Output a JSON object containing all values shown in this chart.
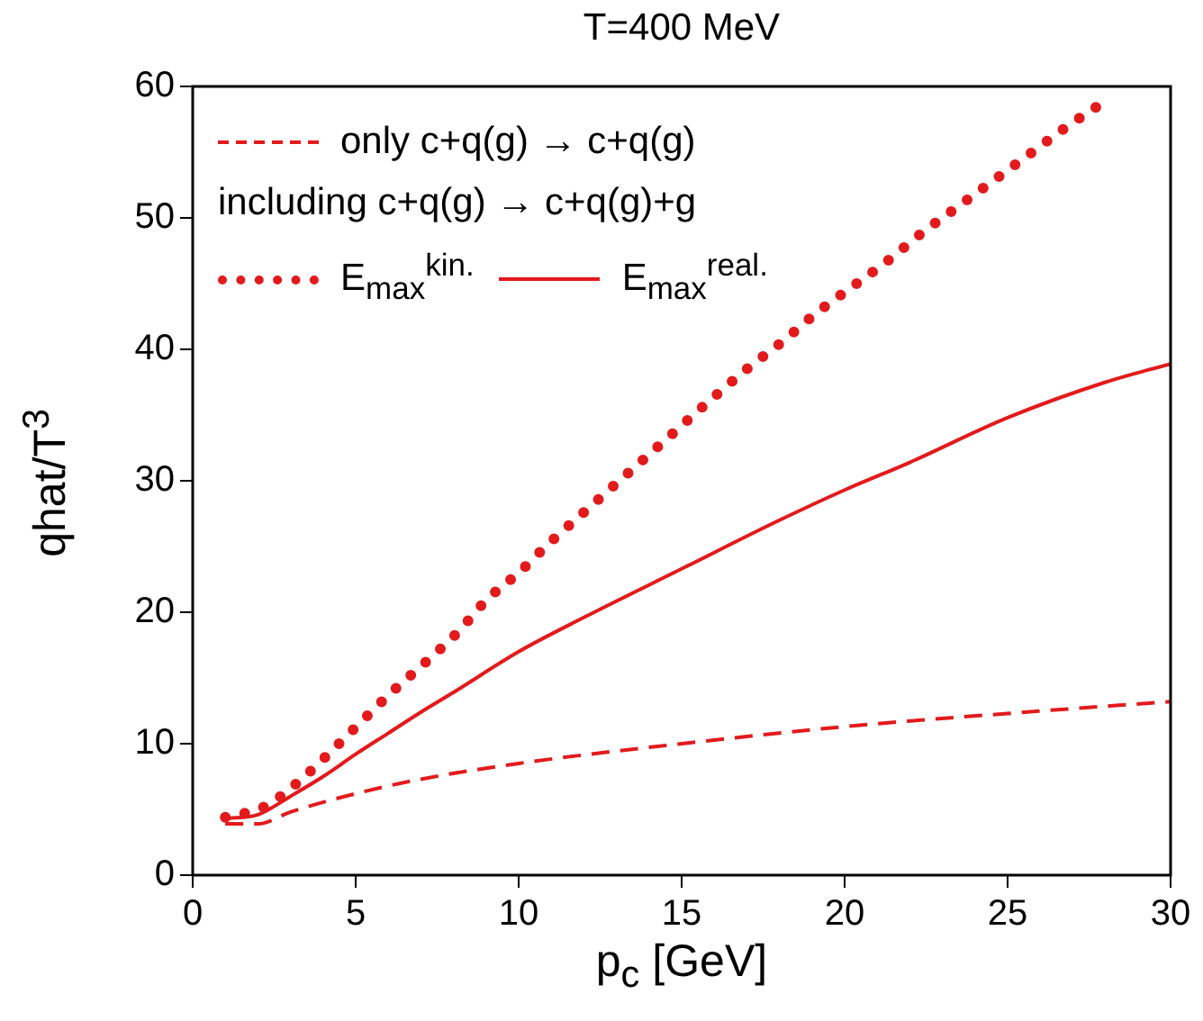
{
  "chart_data": {
    "type": "line",
    "title": "T=400 MeV",
    "xlabel": "p$_{c}$ [GeV]",
    "ylabel": "qhat/T$^{3}$",
    "legend_title": "including c+q(g) → c+q(g)+g",
    "legend": "top left",
    "marker": "none",
    "grid": false,
    "xlim": [
      0,
      30
    ],
    "xticks": [
      0,
      5,
      10,
      15,
      20,
      25,
      30
    ],
    "ylim": [
      0,
      60
    ],
    "yticks": [
      0,
      10,
      20,
      30,
      40,
      50,
      60
    ],
    "series": [
      {
        "name": "only c+q(g) → c+q(g)",
        "color": "#e31a1c",
        "line_style": "dashed",
        "x": [
          1,
          2,
          3,
          5,
          7,
          10,
          15,
          20,
          25,
          30
        ],
        "values": [
          3.9,
          3.9,
          4.8,
          6.2,
          7.3,
          8.5,
          10.0,
          11.3,
          12.3,
          13.2
        ]
      },
      {
        "name": "E$_{max}$$^{kin.}$",
        "color": "#e31a1c",
        "line_style": "dotted",
        "x": [
          1,
          2.2,
          3.2,
          4.2,
          5.1,
          6.1,
          7.1,
          8.1,
          9,
          10,
          11,
          12,
          13,
          14,
          15,
          16,
          17,
          18.1,
          19.1,
          20.2,
          21.3,
          22.4,
          23.5,
          24.6,
          25.7,
          26.8,
          28
        ],
        "values": [
          4.4,
          5.2,
          7,
          9.3,
          11.5,
          13.9,
          16.1,
          18.4,
          20.9,
          23,
          25.4,
          27.6,
          29.8,
          32,
          34.2,
          36.4,
          38.5,
          40.6,
          42.7,
          44.7,
          46.7,
          48.9,
          50.9,
          52.9,
          54.9,
          56.9,
          58.9
        ]
      },
      {
        "name": "E$_{max}$$^{real.}$",
        "color": "#e31a1c",
        "line_style": "solid",
        "x": [
          1,
          2,
          3,
          4,
          5,
          6,
          7,
          8,
          10,
          12,
          15,
          18,
          20,
          22,
          25,
          28,
          30
        ],
        "values": [
          4.3,
          4.6,
          6.0,
          7.5,
          9.2,
          10.8,
          12.4,
          13.9,
          17.0,
          19.6,
          23.3,
          27.0,
          29.3,
          31.4,
          34.8,
          37.5,
          38.9
        ]
      }
    ]
  }
}
